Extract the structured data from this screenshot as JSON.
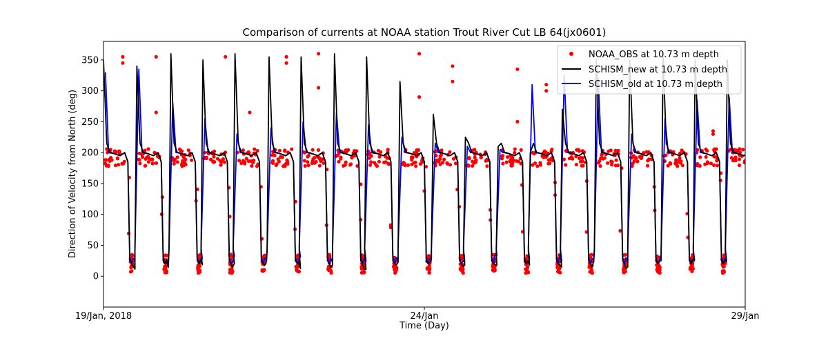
{
  "chart_data": {
    "type": "line",
    "title": "Comparison of currents at NOAA station Trout River Cut LB 64(jx0601)",
    "xlabel": "Time (Day)",
    "ylabel": "Direction of Velocity from North (deg)",
    "xlim": [
      0,
      10
    ],
    "ylim": [
      -50,
      380
    ],
    "yticks": [
      0,
      50,
      100,
      150,
      200,
      250,
      300,
      350
    ],
    "xticks": [
      {
        "value": 0,
        "label": "19/Jan, 2018"
      },
      {
        "value": 5,
        "label": "24/Jan"
      },
      {
        "value": 10,
        "label": "29/Jan"
      }
    ],
    "legend": {
      "position": "top-right",
      "entries": [
        {
          "label": "NOAA_OBS at 10.73 m depth",
          "color": "#ff0000",
          "marker": "dot"
        },
        {
          "label": "SCHISM_new at 10.73 m depth",
          "color": "#000000",
          "marker": "line"
        },
        {
          "label": "SCHISM_old at 10.73 m depth",
          "color": "#0000ff",
          "marker": "line"
        }
      ]
    },
    "cycle_starts_days": [
      0.0,
      0.52,
      1.05,
      1.55,
      2.05,
      2.58,
      3.08,
      3.6,
      4.1,
      4.62,
      5.14,
      5.64,
      6.15,
      6.65,
      7.15,
      7.68,
      8.2,
      8.72,
      9.22,
      9.72
    ],
    "series": [
      {
        "name": "NOAA_OBS at 10.73 m depth",
        "style": "scatter",
        "color": "#ff0000",
        "high_band_mean": 192,
        "low_band_mean": 20,
        "outliers": [
          [
            0.3,
            355
          ],
          [
            0.3,
            345
          ],
          [
            0.82,
            355
          ],
          [
            0.82,
            265
          ],
          [
            1.9,
            355
          ],
          [
            2.28,
            265
          ],
          [
            2.85,
            355
          ],
          [
            2.85,
            345
          ],
          [
            3.35,
            360
          ],
          [
            3.35,
            305
          ],
          [
            4.92,
            360
          ],
          [
            4.92,
            290
          ],
          [
            5.44,
            340
          ],
          [
            5.44,
            315
          ],
          [
            6.45,
            335
          ],
          [
            6.45,
            250
          ],
          [
            6.9,
            310
          ],
          [
            6.9,
            300
          ],
          [
            9.5,
            235
          ],
          [
            9.5,
            230
          ]
        ]
      },
      {
        "name": "SCHISM_new at 10.73 m depth",
        "style": "line",
        "color": "#000000",
        "peaks": [
          350,
          340,
          360,
          350,
          360,
          355,
          355,
          360,
          355,
          315,
          262,
          225,
          210,
          200,
          270,
          350,
          350,
          355,
          350,
          350
        ]
      },
      {
        "name": "SCHISM_old at 10.73 m depth",
        "style": "line",
        "color": "#0000ff",
        "peaks": [
          330,
          335,
          280,
          255,
          230,
          240,
          250,
          265,
          245,
          225,
          215,
          210,
          205,
          310,
          325,
          320,
          230,
          255,
          285,
          290
        ]
      }
    ]
  }
}
